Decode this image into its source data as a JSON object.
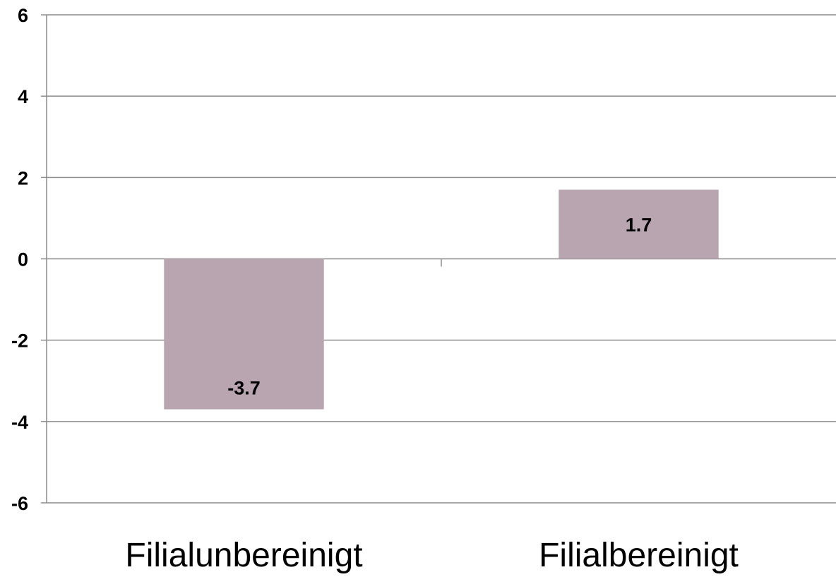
{
  "chart_data": {
    "type": "bar",
    "categories": [
      "Filialunbereinigt",
      "Filialbereinigt"
    ],
    "values": [
      -3.7,
      1.7
    ],
    "data_labels": [
      "-3.7",
      "1.7"
    ],
    "title": "",
    "xlabel": "",
    "ylabel": "",
    "ylim": [
      -6,
      6
    ],
    "yticks": [
      6,
      4,
      2,
      0,
      -2,
      -4,
      -6
    ],
    "ytick_labels": [
      "6",
      "4",
      "2",
      "0",
      "-2",
      "-4",
      "-6"
    ],
    "grid": true,
    "legend": "none",
    "colors": {
      "bar": "#b8a5b0",
      "grid": "#8c8c8c",
      "axis": "#8c8c8c",
      "text": "#000000"
    }
  }
}
